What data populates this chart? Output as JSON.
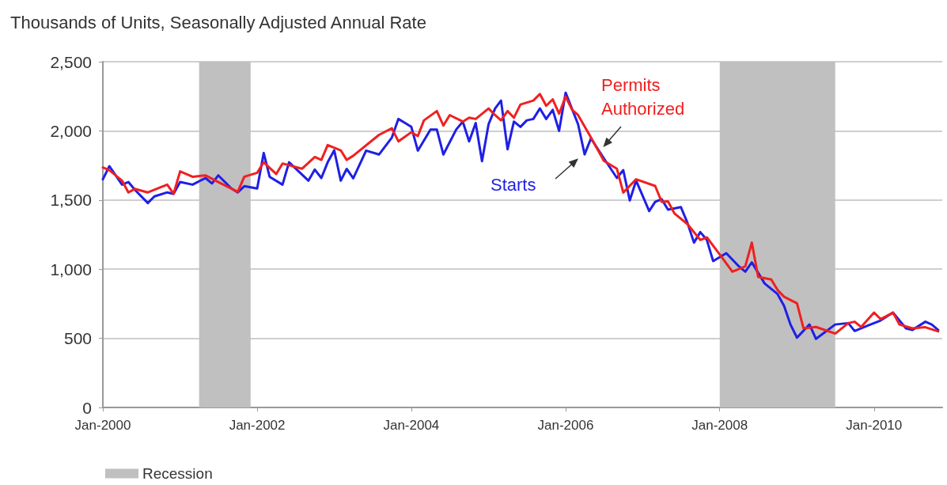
{
  "chart_data": {
    "type": "line",
    "ylabel": "Thousands of Units, Seasonally Adjusted Annual Rate",
    "xlim": [
      "2000-01",
      "2010-11-20"
    ],
    "xticks": [
      {
        "value": "2000-01",
        "label": "Jan-2000"
      },
      {
        "value": "2002-01",
        "label": "Jan-2002"
      },
      {
        "value": "2004-01",
        "label": "Jan-2004"
      },
      {
        "value": "2006-01",
        "label": "Jan-2006"
      },
      {
        "value": "2008-01",
        "label": "Jan-2008"
      },
      {
        "value": "2010-01",
        "label": "Jan-2010"
      }
    ],
    "ylim": [
      0,
      2500
    ],
    "yticks": [
      0,
      {
        "value": 500,
        "label": "500"
      },
      {
        "value": 1000,
        "label": "1,000"
      },
      {
        "value": 1500,
        "label": "1,500"
      },
      {
        "value": 2000,
        "label": "2,000"
      },
      {
        "value": 2500,
        "label": "2,500"
      }
    ],
    "grid": "y",
    "legend": "bottom left",
    "marker": "none",
    "line_style": "solid",
    "bands": [
      {
        "axis": "x",
        "from": "2001-04",
        "to": "2001-12",
        "label": "Recession",
        "color": "#c0c0c0"
      },
      {
        "axis": "x",
        "from": "2008-01",
        "to": "2009-07",
        "color": "#c0c0c0"
      }
    ],
    "series": [
      {
        "name": "Starts",
        "color": "#1f1fe6",
        "x": [
          "2000-01",
          "2000-02",
          "2000-04",
          "2000-05",
          "2000-06",
          "2000-08",
          "2000-09",
          "2000-11",
          "2000-12",
          "2001-01",
          "2001-03",
          "2001-05",
          "2001-06",
          "2001-07",
          "2001-09",
          "2001-10",
          "2001-11",
          "2002-01",
          "2002-02",
          "2002-03",
          "2002-05",
          "2002-06",
          "2002-09",
          "2002-10",
          "2002-11",
          "2002-12",
          "2003-01",
          "2003-02",
          "2003-03",
          "2003-04",
          "2003-06",
          "2003-08",
          "2003-10",
          "2003-11",
          "2004-01",
          "2004-02",
          "2004-04",
          "2004-05",
          "2004-06",
          "2004-08",
          "2004-09",
          "2004-10",
          "2004-11",
          "2004-12",
          "2005-01",
          "2005-02",
          "2005-03",
          "2005-04",
          "2005-05",
          "2005-06",
          "2005-07",
          "2005-08",
          "2005-09",
          "2005-10",
          "2005-11",
          "2005-12",
          "2006-01",
          "2006-03",
          "2006-04",
          "2006-05",
          "2006-07",
          "2006-09",
          "2006-10",
          "2006-11",
          "2006-12",
          "2007-02",
          "2007-03",
          "2007-04",
          "2007-05",
          "2007-07",
          "2007-08",
          "2007-09",
          "2007-10",
          "2007-11",
          "2007-12",
          "2008-02",
          "2008-04",
          "2008-05",
          "2008-06",
          "2008-08",
          "2008-10",
          "2008-11",
          "2008-12",
          "2009-01",
          "2009-03",
          "2009-04",
          "2009-07",
          "2009-09",
          "2009-10",
          "2009-12",
          "2010-02",
          "2010-04",
          "2010-06",
          "2010-07",
          "2010-09",
          "2010-10",
          "2010-11"
        ],
        "values": [
          1650,
          1745,
          1611,
          1630,
          1573,
          1478,
          1526,
          1555,
          1545,
          1630,
          1611,
          1659,
          1620,
          1678,
          1583,
          1555,
          1600,
          1583,
          1840,
          1668,
          1611,
          1773,
          1640,
          1720,
          1659,
          1773,
          1859,
          1640,
          1725,
          1657,
          1857,
          1829,
          1952,
          2086,
          2029,
          1857,
          2010,
          2010,
          1829,
          2010,
          2067,
          1924,
          2057,
          1781,
          2048,
          2162,
          2219,
          1867,
          2067,
          2029,
          2076,
          2086,
          2162,
          2086,
          2152,
          2000,
          2276,
          2048,
          1830,
          1945,
          1802,
          1659,
          1716,
          1497,
          1640,
          1420,
          1487,
          1506,
          1430,
          1449,
          1335,
          1192,
          1268,
          1211,
          1058,
          1116,
          1020,
          982,
          1049,
          896,
          820,
          734,
          600,
          505,
          600,
          496,
          600,
          610,
          553,
          591,
          629,
          686,
          572,
          560,
          620,
          600,
          560
        ]
      },
      {
        "name": "Permits\nAuthorized",
        "color": "#f02020",
        "x": [
          "2000-01",
          "2000-02",
          "2000-04",
          "2000-05",
          "2000-06",
          "2000-08",
          "2000-10",
          "2000-11",
          "2000-12",
          "2001-01",
          "2001-03",
          "2001-05",
          "2001-07",
          "2001-09",
          "2001-10",
          "2001-11",
          "2002-01",
          "2002-02",
          "2002-04",
          "2002-05",
          "2002-08",
          "2002-10",
          "2002-11",
          "2002-12",
          "2003-02",
          "2003-03",
          "2003-04",
          "2003-08",
          "2003-10",
          "2003-11",
          "2004-01",
          "2004-02",
          "2004-03",
          "2004-05",
          "2004-06",
          "2004-07",
          "2004-09",
          "2004-10",
          "2004-11",
          "2005-01",
          "2005-02",
          "2005-03",
          "2005-04",
          "2005-05",
          "2005-06",
          "2005-08",
          "2005-09",
          "2005-10",
          "2005-11",
          "2005-12",
          "2006-01",
          "2006-02",
          "2006-03",
          "2006-05",
          "2006-07",
          "2006-09",
          "2006-10",
          "2006-12",
          "2007-03",
          "2007-04",
          "2007-05",
          "2007-06",
          "2007-08",
          "2007-10",
          "2007-11",
          "2008-01",
          "2008-03",
          "2008-05",
          "2008-06",
          "2008-07",
          "2008-09",
          "2008-10",
          "2008-11",
          "2009-01",
          "2009-02",
          "2009-04",
          "2009-07",
          "2009-09",
          "2009-10",
          "2009-11",
          "2010-01",
          "2010-02",
          "2010-04",
          "2010-05",
          "2010-07",
          "2010-09",
          "2010-11"
        ],
        "values": [
          1735,
          1716,
          1640,
          1555,
          1580,
          1555,
          1592,
          1611,
          1545,
          1707,
          1668,
          1678,
          1630,
          1583,
          1560,
          1668,
          1697,
          1773,
          1688,
          1764,
          1726,
          1811,
          1790,
          1897,
          1859,
          1790,
          1820,
          1971,
          2019,
          1924,
          1990,
          1962,
          2076,
          2143,
          2038,
          2114,
          2067,
          2095,
          2086,
          2162,
          2114,
          2076,
          2143,
          2095,
          2190,
          2219,
          2267,
          2181,
          2228,
          2124,
          2248,
          2152,
          2114,
          1952,
          1783,
          1726,
          1554,
          1650,
          1602,
          1487,
          1490,
          1402,
          1326,
          1211,
          1230,
          1106,
          982,
          1020,
          1192,
          944,
          925,
          849,
          800,
          753,
          572,
          582,
          534,
          610,
          620,
          582,
          686,
          639,
          686,
          600,
          572,
          580,
          550
        ]
      }
    ]
  }
}
